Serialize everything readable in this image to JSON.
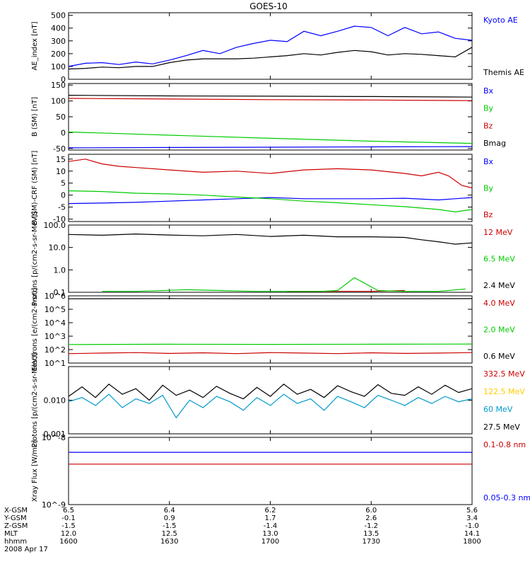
{
  "title": "GOES-10",
  "chart_data": [
    {
      "type": "line",
      "ylabel": "AE_index [nT]",
      "ylim": [
        0,
        520
      ],
      "scale": "linear",
      "yticks": [
        {
          "v": 0,
          "t": "0"
        },
        {
          "v": 100,
          "t": "100"
        },
        {
          "v": 200,
          "t": "200"
        },
        {
          "v": 300,
          "t": "300"
        },
        {
          "v": 400,
          "t": "400"
        },
        {
          "v": 500,
          "t": "500"
        }
      ],
      "series": [
        {
          "name": "Kyoto AE",
          "color": "#0000ff",
          "x": [
            0,
            5,
            10,
            15,
            20,
            25,
            30,
            35,
            40,
            45,
            50,
            55,
            60,
            65,
            70,
            75,
            80,
            85,
            90,
            95,
            100,
            105,
            110,
            115,
            120
          ],
          "values": [
            100,
            125,
            130,
            115,
            135,
            120,
            150,
            185,
            225,
            200,
            250,
            280,
            305,
            295,
            375,
            340,
            375,
            415,
            405,
            340,
            405,
            355,
            370,
            320,
            305
          ]
        },
        {
          "name": "Themis AE",
          "color": "#000000",
          "x": [
            0,
            5,
            10,
            15,
            20,
            25,
            30,
            35,
            40,
            45,
            50,
            55,
            60,
            65,
            70,
            75,
            80,
            85,
            90,
            95,
            100,
            105,
            110,
            115,
            120
          ],
          "values": [
            80,
            85,
            95,
            90,
            100,
            100,
            130,
            150,
            160,
            160,
            160,
            165,
            175,
            185,
            200,
            190,
            210,
            225,
            215,
            190,
            200,
            195,
            185,
            175,
            250
          ]
        }
      ]
    },
    {
      "type": "line",
      "ylabel": "B (SM) [nT]",
      "ylim": [
        -55,
        155
      ],
      "scale": "linear",
      "yticks": [
        {
          "v": -50,
          "t": "-50"
        },
        {
          "v": 0,
          "t": "0"
        },
        {
          "v": 50,
          "t": "50"
        },
        {
          "v": 100,
          "t": "100"
        },
        {
          "v": 150,
          "t": "150"
        }
      ],
      "series": [
        {
          "name": "Bx",
          "color": "#0000ff",
          "x": [
            0,
            30,
            60,
            90,
            120
          ],
          "values": [
            -48,
            -47,
            -46,
            -45,
            -44
          ]
        },
        {
          "name": "By",
          "color": "#00cc00",
          "x": [
            0,
            30,
            60,
            90,
            120
          ],
          "values": [
            2,
            -8,
            -18,
            -27,
            -34
          ]
        },
        {
          "name": "Bz",
          "color": "#cc0000",
          "x": [
            0,
            30,
            60,
            90,
            120
          ],
          "values": [
            108,
            106,
            104,
            103,
            101
          ]
        },
        {
          "name": "Bmag",
          "color": "#000000",
          "x": [
            0,
            30,
            60,
            90,
            120
          ],
          "values": [
            118,
            116,
            115,
            114,
            112
          ]
        }
      ]
    },
    {
      "type": "line",
      "ylabel": "B (SM)-CRF (SM) [nT]",
      "ylim": [
        -11,
        17
      ],
      "scale": "linear",
      "yticks": [
        {
          "v": -10,
          "t": "-10"
        },
        {
          "v": -5,
          "t": "-5"
        },
        {
          "v": 0,
          "t": "0"
        },
        {
          "v": 5,
          "t": "5"
        },
        {
          "v": 10,
          "t": "10"
        },
        {
          "v": 15,
          "t": "15"
        }
      ],
      "series": [
        {
          "name": "Bx",
          "color": "#0000ff",
          "x": [
            0,
            10,
            20,
            30,
            40,
            50,
            60,
            70,
            80,
            90,
            100,
            110,
            115,
            120
          ],
          "values": [
            -3.5,
            -3.3,
            -3.0,
            -2.5,
            -2.0,
            -1.5,
            -1.0,
            -1.5,
            -1.5,
            -1.5,
            -1.3,
            -2.0,
            -1.5,
            -1.0
          ]
        },
        {
          "name": "By",
          "color": "#00cc00",
          "x": [
            0,
            10,
            20,
            30,
            40,
            50,
            60,
            70,
            80,
            90,
            100,
            110,
            115,
            120
          ],
          "values": [
            1.8,
            1.5,
            0.8,
            0.5,
            0,
            -0.8,
            -1.5,
            -2.5,
            -3.2,
            -4.0,
            -4.8,
            -6.0,
            -7.0,
            -6.0
          ]
        },
        {
          "name": "Bz",
          "color": "#cc0000",
          "x": [
            0,
            5,
            10,
            15,
            20,
            30,
            40,
            50,
            60,
            70,
            80,
            90,
            100,
            105,
            110,
            113,
            117,
            120
          ],
          "values": [
            14,
            15,
            13,
            12,
            11.5,
            10.5,
            9.5,
            10,
            9,
            10.5,
            11,
            10.5,
            9,
            8,
            9.5,
            8,
            4,
            3
          ]
        }
      ]
    },
    {
      "type": "line",
      "ylabel": "Protons [p/(cm2-s-sr-MeV)]",
      "ylim": [
        0.1,
        100
      ],
      "scale": "log",
      "yticks": [
        {
          "v": 0.1,
          "t": "0.1"
        },
        {
          "v": 1,
          "t": "1.0"
        },
        {
          "v": 10,
          "t": "10.0"
        },
        {
          "v": 100,
          "t": "100.0"
        }
      ],
      "series": [
        {
          "name": "12 MeV",
          "color": "#cc0000",
          "x": [
            65,
            80,
            90,
            100
          ],
          "values": [
            0.11,
            0.11,
            0.11,
            0.12
          ]
        },
        {
          "name": "6.5 MeV",
          "color": "#00cc00",
          "x": [
            10,
            20,
            35,
            45,
            55,
            65,
            75,
            80,
            85,
            92,
            100,
            110,
            118
          ],
          "values": [
            0.11,
            0.11,
            0.13,
            0.12,
            0.11,
            0.11,
            0.11,
            0.12,
            0.45,
            0.12,
            0.11,
            0.11,
            0.14
          ]
        },
        {
          "name": "2.4 MeV",
          "color": "#000000",
          "x": [
            0,
            10,
            20,
            30,
            40,
            50,
            60,
            70,
            80,
            90,
            100,
            105,
            110,
            115,
            120
          ],
          "values": [
            38,
            35,
            40,
            36,
            33,
            38,
            31,
            35,
            30,
            30,
            28,
            22,
            18,
            14,
            16
          ]
        }
      ]
    },
    {
      "type": "line",
      "ylabel": "Electrons [e/(cm2-s-sr)]",
      "ylim": [
        10,
        1000000
      ],
      "scale": "log",
      "yticks": [
        {
          "v": 10,
          "t": "10^1"
        },
        {
          "v": 100,
          "t": "10^2"
        },
        {
          "v": 1000,
          "t": "10^3"
        },
        {
          "v": 10000,
          "t": "10^4"
        },
        {
          "v": 100000,
          "t": "10^5"
        },
        {
          "v": 1000000,
          "t": "10^6"
        }
      ],
      "series": [
        {
          "name": "4.0 MeV",
          "color": "#cc0000",
          "x": [
            0,
            10,
            20,
            30,
            40,
            50,
            60,
            70,
            80,
            90,
            100,
            110,
            120
          ],
          "values": [
            50,
            55,
            60,
            52,
            58,
            50,
            60,
            55,
            50,
            58,
            52,
            55,
            60
          ]
        },
        {
          "name": "2.0 MeV",
          "color": "#00cc00",
          "x": [
            0,
            30,
            60,
            90,
            120
          ],
          "values": [
            240,
            250,
            245,
            250,
            260
          ]
        },
        {
          "name": "0.6 MeV",
          "color": "#000000",
          "x": [
            0,
            30,
            60,
            90,
            120
          ],
          "values": [
            600000,
            620000,
            610000,
            600000,
            620000
          ]
        }
      ]
    },
    {
      "type": "line",
      "ylabel": "Protons [p/(cm2-s-sr-MeV)]",
      "ylim": [
        0.001,
        0.1
      ],
      "scale": "log",
      "yticks": [
        {
          "v": 0.001,
          "t": "0.001"
        },
        {
          "v": 0.01,
          "t": "0.010"
        }
      ],
      "series": [
        {
          "name": "332.5 MeV",
          "color": "#cc0000",
          "x": [],
          "values": []
        },
        {
          "name": "122.5 MeV",
          "color": "#ffcc00",
          "x": [],
          "values": []
        },
        {
          "name": "60 MeV",
          "color": "#0099cc",
          "x": [
            0,
            4,
            8,
            12,
            16,
            20,
            24,
            28,
            32,
            36,
            40,
            44,
            48,
            52,
            56,
            60,
            64,
            68,
            72,
            76,
            80,
            84,
            88,
            92,
            96,
            100,
            104,
            108,
            112,
            116,
            120
          ],
          "values": [
            0.009,
            0.012,
            0.007,
            0.015,
            0.006,
            0.011,
            0.008,
            0.014,
            0.003,
            0.01,
            0.006,
            0.013,
            0.009,
            0.005,
            0.012,
            0.007,
            0.015,
            0.008,
            0.011,
            0.005,
            0.013,
            0.009,
            0.006,
            0.014,
            0.01,
            0.007,
            0.012,
            0.008,
            0.013,
            0.009,
            0.011
          ]
        },
        {
          "name": "27.5 MeV",
          "color": "#000000",
          "x": [
            0,
            4,
            8,
            12,
            16,
            20,
            24,
            28,
            32,
            36,
            40,
            44,
            48,
            52,
            56,
            60,
            64,
            68,
            72,
            76,
            80,
            84,
            88,
            92,
            96,
            100,
            104,
            108,
            112,
            116,
            120
          ],
          "values": [
            0.013,
            0.025,
            0.012,
            0.03,
            0.015,
            0.022,
            0.01,
            0.028,
            0.014,
            0.02,
            0.012,
            0.026,
            0.016,
            0.011,
            0.024,
            0.013,
            0.03,
            0.015,
            0.021,
            0.012,
            0.027,
            0.018,
            0.013,
            0.029,
            0.016,
            0.014,
            0.025,
            0.015,
            0.028,
            0.017,
            0.022
          ]
        }
      ]
    },
    {
      "type": "line",
      "ylabel": "Xray Flux [W/m2]",
      "ylim": [
        1e-09,
        1e-08
      ],
      "scale": "log",
      "yticks": [
        {
          "v": 1e-09,
          "t": "10^-9"
        },
        {
          "v": 1e-08,
          "t": "10^-8"
        }
      ],
      "series": [
        {
          "name": "0.1-0.8 nm",
          "color": "#cc0000",
          "x": [
            0,
            120
          ],
          "values": [
            4e-09,
            4e-09
          ]
        },
        {
          "name": "0.05-0.3 nm",
          "color": "#0000ff",
          "x": [
            0,
            120
          ],
          "values": [
            6e-09,
            6e-09
          ]
        }
      ]
    }
  ],
  "ephemeris": {
    "labels": [
      "X-GSM",
      "Y-GSM",
      "Z-GSM",
      "MLT",
      "hhmm",
      "2008 Apr 17"
    ],
    "columns": [
      {
        "vals": [
          "6.5",
          "-0.1",
          "-1.5",
          "12.0",
          "1600"
        ]
      },
      {
        "vals": [
          "6.4",
          "0.9",
          "-1.5",
          "12.5",
          "1630"
        ]
      },
      {
        "vals": [
          "6.2",
          "1.7",
          "-1.4",
          "13.0",
          "1700"
        ]
      },
      {
        "vals": [
          "6.0",
          "2.6",
          "-1.2",
          "13.5",
          "1730"
        ]
      },
      {
        "vals": [
          "5.6",
          "3.4",
          "-1.0",
          "14.1",
          "1800"
        ]
      }
    ]
  }
}
